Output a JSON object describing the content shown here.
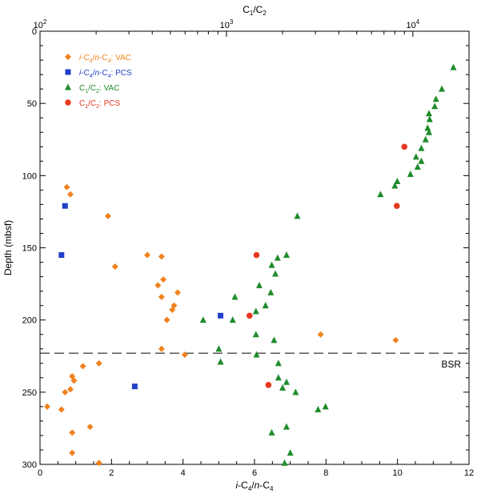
{
  "chart_data": {
    "type": "scatter",
    "xlabel_bottom": {
      "pre": "i",
      "mid1": "-C",
      "sub1": "4",
      "mid2": "/",
      "italic2": "n",
      "mid3": "-C",
      "sub2": "4"
    },
    "xlabel_top": {
      "c1": "C",
      "s1": "1",
      "slash": "/C",
      "s2": "2"
    },
    "ylabel": "Depth (mbsf)",
    "xlim_bottom": [
      0,
      12
    ],
    "xlim_top": [
      100,
      20000
    ],
    "ylim": [
      0,
      300
    ],
    "y_inverted": true,
    "top_axis_scale": "log",
    "bottom_ticks": [
      "0",
      "2",
      "4",
      "6",
      "8",
      "10",
      "12"
    ],
    "top_ticks": [
      {
        "base": "10",
        "exp": "2",
        "value": 100
      },
      {
        "base": "10",
        "exp": "3",
        "value": 1000
      },
      {
        "base": "10",
        "exp": "4",
        "value": 10000
      }
    ],
    "y_ticks": [
      "0",
      "50",
      "100",
      "150",
      "200",
      "250",
      "300"
    ],
    "bsr": {
      "label": "BSR",
      "depth": 223
    },
    "legend_position": "top-left",
    "series": [
      {
        "legend": {
          "i": "i",
          "a": "-C",
          "s1": "4",
          "b": "/",
          "n": "n",
          "c": "-C",
          "s2": "4",
          "rest": ": VAC"
        },
        "marker": "diamond",
        "color": "#f0821e",
        "axis": "bottom",
        "points": [
          [
            0.75,
            108
          ],
          [
            0.85,
            113
          ],
          [
            1.9,
            128
          ],
          [
            3.0,
            155
          ],
          [
            3.4,
            156
          ],
          [
            2.1,
            163
          ],
          [
            3.45,
            172
          ],
          [
            3.3,
            176
          ],
          [
            3.85,
            181
          ],
          [
            3.4,
            184
          ],
          [
            3.75,
            190
          ],
          [
            3.7,
            193
          ],
          [
            3.55,
            200
          ],
          [
            7.85,
            210
          ],
          [
            9.95,
            214
          ],
          [
            3.4,
            220
          ],
          [
            4.05,
            224
          ],
          [
            1.2,
            232
          ],
          [
            1.65,
            230
          ],
          [
            0.9,
            239
          ],
          [
            0.95,
            242
          ],
          [
            0.85,
            248
          ],
          [
            0.7,
            250
          ],
          [
            0.2,
            260
          ],
          [
            0.6,
            262
          ],
          [
            1.4,
            274
          ],
          [
            0.9,
            278
          ],
          [
            0.9,
            292
          ],
          [
            1.65,
            299
          ]
        ]
      },
      {
        "legend": {
          "i": "i",
          "a": "-C",
          "s1": "4",
          "b": "/",
          "n": "n",
          "c": "-C",
          "s2": "4",
          "rest": ": PCS"
        },
        "marker": "square",
        "color": "#1f3fc8",
        "axis": "bottom",
        "points": [
          [
            0.7,
            121
          ],
          [
            0.6,
            155
          ],
          [
            5.05,
            197
          ],
          [
            2.65,
            246
          ]
        ]
      },
      {
        "legend": {
          "c1": "C",
          "s1": "1",
          "slash": "/C",
          "s2": "2",
          "rest": ": VAC"
        },
        "marker": "triangle",
        "color": "#1e8c2a",
        "axis": "top",
        "points": [
          [
            16500,
            25
          ],
          [
            14300,
            40
          ],
          [
            13300,
            47
          ],
          [
            13100,
            52
          ],
          [
            12200,
            57
          ],
          [
            12300,
            61
          ],
          [
            12000,
            67
          ],
          [
            12200,
            70
          ],
          [
            11700,
            75
          ],
          [
            11100,
            81
          ],
          [
            10400,
            87
          ],
          [
            11100,
            90
          ],
          [
            10600,
            94
          ],
          [
            9700,
            99
          ],
          [
            8250,
            104
          ],
          [
            8000,
            107
          ],
          [
            6700,
            113
          ],
          [
            2400,
            128
          ],
          [
            2100,
            155
          ],
          [
            1880,
            157
          ],
          [
            1750,
            162
          ],
          [
            1830,
            168
          ],
          [
            1500,
            176
          ],
          [
            1730,
            181
          ],
          [
            1110,
            184
          ],
          [
            1620,
            190
          ],
          [
            1440,
            194
          ],
          [
            1080,
            200
          ],
          [
            750,
            200
          ],
          [
            1440,
            210
          ],
          [
            1800,
            214
          ],
          [
            910,
            220
          ],
          [
            930,
            229
          ],
          [
            1450,
            224
          ],
          [
            1900,
            230
          ],
          [
            1900,
            240
          ],
          [
            2100,
            243
          ],
          [
            2350,
            250
          ],
          [
            2000,
            247
          ],
          [
            3100,
            262
          ],
          [
            3400,
            260
          ],
          [
            2100,
            274
          ],
          [
            1750,
            278
          ],
          [
            2200,
            292
          ],
          [
            2050,
            299
          ]
        ]
      },
      {
        "legend": {
          "c1": "C",
          "s1": "1",
          "slash": "/C",
          "s2": "2",
          "rest": ": PCS"
        },
        "marker": "circle",
        "color": "#e83820",
        "axis": "top",
        "points": [
          [
            9000,
            80
          ],
          [
            8200,
            121
          ],
          [
            1450,
            155
          ],
          [
            1330,
            197
          ],
          [
            1680,
            245
          ]
        ]
      }
    ]
  }
}
